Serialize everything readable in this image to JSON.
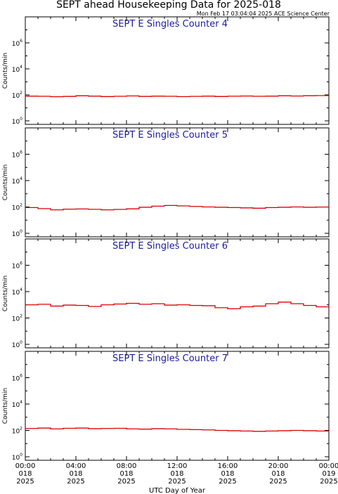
{
  "header": {
    "title": "SEPT ahead Housekeeping Data for 2025-018",
    "timestamp": "Mon Feb 17 03:04:04 2025 ACE Science Center"
  },
  "chart_data": [
    {
      "type": "line",
      "title": "SEPT E Singles Counter 4",
      "ylabel": "Counts/min",
      "yscale": "log",
      "ylim": [
        1,
        100000000
      ],
      "ytick_labels": [
        "10^0",
        "10^2",
        "10^4",
        "10^6"
      ],
      "xlabel": "UTC Day of Year",
      "xlim": [
        "2025-018 00:00",
        "2025-019 00:00"
      ],
      "x_time": [
        "00:00",
        "04:00",
        "08:00",
        "12:00",
        "16:00",
        "20:00",
        "00:00"
      ],
      "x_day": [
        "018",
        "018",
        "018",
        "018",
        "018",
        "018",
        "019"
      ],
      "x_year": [
        "2025",
        "2025",
        "2025",
        "2025",
        "2025",
        "2025",
        "2025"
      ],
      "color": "#dd0000",
      "series": [
        {
          "x_hours": [
            0,
            1,
            2,
            3,
            4,
            5,
            6,
            7,
            8,
            9,
            10,
            11,
            12,
            13,
            14,
            15,
            16,
            17,
            18,
            19,
            20,
            21,
            22,
            23,
            24
          ],
          "values": [
            80,
            78,
            72,
            76,
            85,
            80,
            74,
            78,
            83,
            76,
            80,
            78,
            73,
            77,
            80,
            75,
            79,
            82,
            78,
            80,
            85,
            82,
            86,
            88,
            90
          ]
        }
      ]
    },
    {
      "type": "line",
      "title": "SEPT E Singles Counter 5",
      "ylabel": "Counts/min",
      "yscale": "log",
      "ylim": [
        1,
        100000000
      ],
      "ytick_labels": [
        "10^0",
        "10^2",
        "10^4",
        "10^6"
      ],
      "xlabel": "UTC Day of Year",
      "xlim": [
        "2025-018 00:00",
        "2025-019 00:00"
      ],
      "color": "#dd0000",
      "series": [
        {
          "x_hours": [
            0,
            1,
            2,
            3,
            4,
            5,
            6,
            7,
            8,
            9,
            10,
            11,
            12,
            13,
            14,
            15,
            16,
            17,
            18,
            19,
            20,
            21,
            22,
            23,
            24
          ],
          "values": [
            90,
            75,
            60,
            68,
            70,
            66,
            60,
            65,
            72,
            95,
            115,
            130,
            120,
            110,
            100,
            95,
            90,
            85,
            80,
            90,
            95,
            100,
            95,
            98,
            95
          ]
        }
      ]
    },
    {
      "type": "line",
      "title": "SEPT E Singles Counter 6",
      "ylabel": "Counts/min",
      "yscale": "log",
      "ylim": [
        1,
        100000000
      ],
      "ytick_labels": [
        "10^0",
        "10^2",
        "10^4",
        "10^6"
      ],
      "xlabel": "UTC Day of Year",
      "xlim": [
        "2025-018 00:00",
        "2025-019 00:00"
      ],
      "color": "#dd0000",
      "series": [
        {
          "x_hours": [
            0,
            1,
            2,
            3,
            4,
            5,
            6,
            7,
            8,
            9,
            10,
            11,
            12,
            13,
            14,
            15,
            16,
            17,
            18,
            19,
            20,
            21,
            22,
            23,
            24
          ],
          "values": [
            1000,
            1100,
            800,
            950,
            900,
            750,
            1000,
            1150,
            1300,
            1100,
            1200,
            950,
            1000,
            900,
            850,
            600,
            500,
            700,
            800,
            1200,
            1600,
            1200,
            900,
            700,
            400
          ]
        }
      ]
    },
    {
      "type": "line",
      "title": "SEPT E Singles Counter 7",
      "ylabel": "Counts/min",
      "yscale": "log",
      "ylim": [
        1,
        100000000
      ],
      "ytick_labels": [
        "10^0",
        "10^2",
        "10^4",
        "10^6"
      ],
      "xlabel": "UTC Day of Year",
      "xlim": [
        "2025-018 00:00",
        "2025-019 00:00"
      ],
      "color": "#dd0000",
      "series": [
        {
          "x_hours": [
            0,
            1,
            2,
            3,
            4,
            5,
            6,
            7,
            8,
            9,
            10,
            11,
            12,
            13,
            14,
            15,
            16,
            17,
            18,
            19,
            20,
            21,
            22,
            23,
            24
          ],
          "values": [
            140,
            150,
            130,
            145,
            150,
            135,
            140,
            145,
            130,
            125,
            135,
            130,
            120,
            115,
            110,
            100,
            95,
            90,
            85,
            90,
            95,
            100,
            95,
            90,
            95
          ]
        }
      ]
    }
  ]
}
